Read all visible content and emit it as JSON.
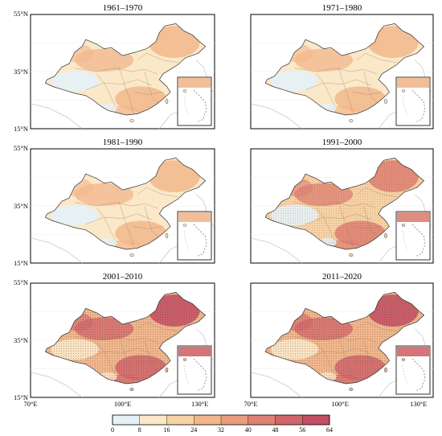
{
  "panels": [
    {
      "title": "1961–1970",
      "level": 1
    },
    {
      "title": "1971–1980",
      "level": 1
    },
    {
      "title": "1981–1990",
      "level": 1
    },
    {
      "title": "1991–2000",
      "level": 2
    },
    {
      "title": "2001–2010",
      "level": 3
    },
    {
      "title": "2011–2020",
      "level": 3
    }
  ],
  "axes": {
    "lat_labels": [
      "55°N",
      "35°N",
      "15°N"
    ],
    "lon_labels": [
      "70°E",
      "100°E",
      "130°E"
    ]
  },
  "colorbar": {
    "ticks": [
      "0",
      "8",
      "16",
      "24",
      "32",
      "40",
      "48",
      "56",
      "64"
    ],
    "colors": [
      "#e4f1f6",
      "#fbe8c8",
      "#f7d2a4",
      "#f1b78c",
      "#e99c7e",
      "#de8072",
      "#d0656a",
      "#c24f62"
    ]
  }
}
